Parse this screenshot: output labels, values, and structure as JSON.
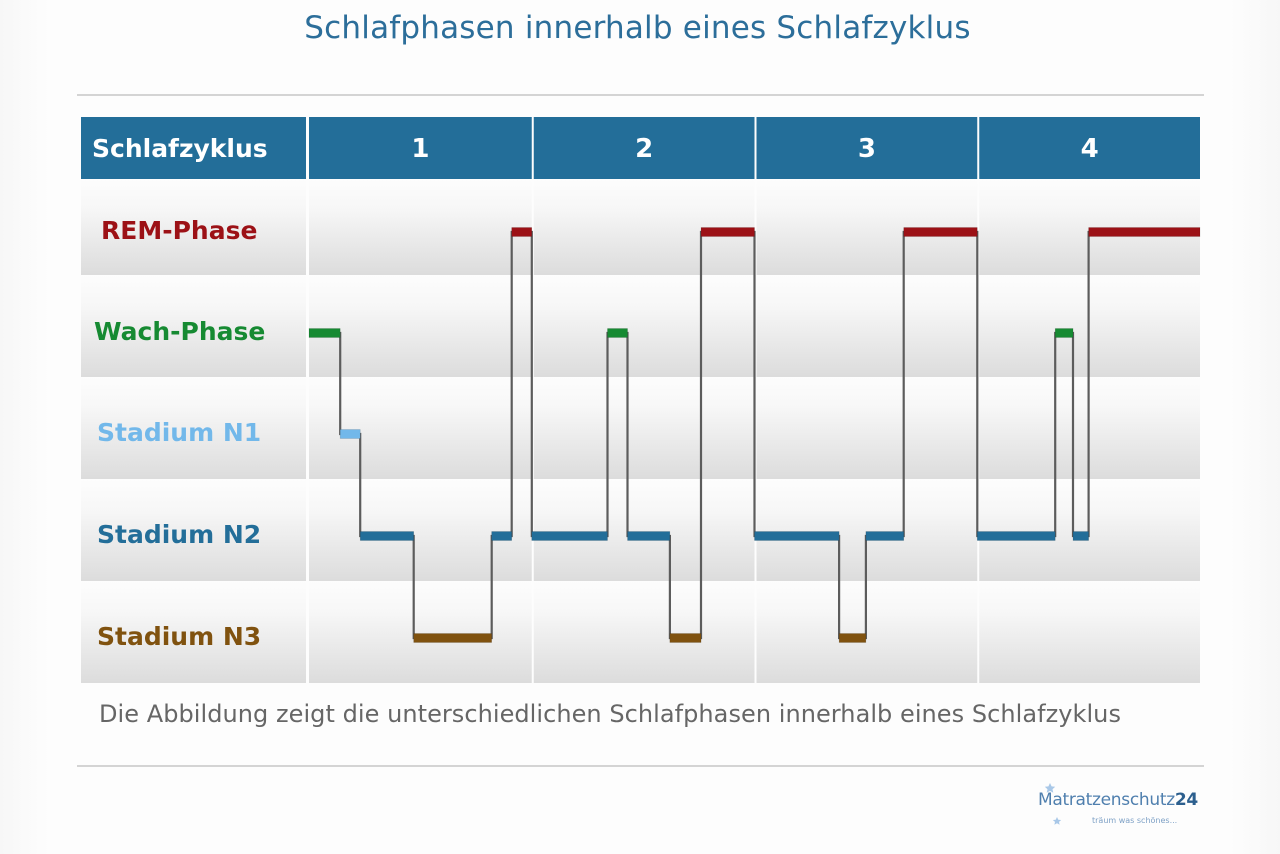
{
  "title": "Schlafphasen innerhalb eines Schlafzyklus",
  "caption": "Die Abbildung zeigt die unterschiedlichen Schlafphasen innerhalb eines Schlafzyklus",
  "logo": {
    "name": "Matratzenschutz",
    "number": "24",
    "tagline": "träum was schönes..."
  },
  "colors": {
    "header": "#236e99",
    "trace": "#5c5c5c",
    "rem": "#9c1116",
    "wach": "#168a32",
    "n1": "#72b8ea",
    "n2": "#236e99",
    "n3": "#80520f"
  },
  "chart_data": {
    "type": "line",
    "header_label": "Schlafzyklus",
    "cycles": [
      "1",
      "2",
      "3",
      "4"
    ],
    "stages": [
      {
        "key": "rem",
        "label": "REM-Phase"
      },
      {
        "key": "wach",
        "label": "Wach-Phase"
      },
      {
        "key": "n1",
        "label": "Stadium N1"
      },
      {
        "key": "n2",
        "label": "Stadium N2"
      },
      {
        "key": "n3",
        "label": "Stadium N3"
      }
    ],
    "x_range": [
      0,
      4
    ],
    "hypnogram": [
      {
        "stage": "wach",
        "start": 0.0,
        "end": 0.14
      },
      {
        "stage": "n1",
        "start": 0.14,
        "end": 0.23
      },
      {
        "stage": "n2",
        "start": 0.23,
        "end": 0.47
      },
      {
        "stage": "n3",
        "start": 0.47,
        "end": 0.82
      },
      {
        "stage": "n2",
        "start": 0.82,
        "end": 0.91
      },
      {
        "stage": "rem",
        "start": 0.91,
        "end": 1.0
      },
      {
        "stage": "n2",
        "start": 1.0,
        "end": 1.34
      },
      {
        "stage": "wach",
        "start": 1.34,
        "end": 1.43
      },
      {
        "stage": "n2",
        "start": 1.43,
        "end": 1.62
      },
      {
        "stage": "n3",
        "start": 1.62,
        "end": 1.76
      },
      {
        "stage": "rem",
        "start": 1.76,
        "end": 2.0
      },
      {
        "stage": "n2",
        "start": 2.0,
        "end": 2.38
      },
      {
        "stage": "n3",
        "start": 2.38,
        "end": 2.5
      },
      {
        "stage": "n2",
        "start": 2.5,
        "end": 2.67
      },
      {
        "stage": "rem",
        "start": 2.67,
        "end": 3.0
      },
      {
        "stage": "n2",
        "start": 3.0,
        "end": 3.35
      },
      {
        "stage": "wach",
        "start": 3.35,
        "end": 3.43
      },
      {
        "stage": "n2",
        "start": 3.43,
        "end": 3.5
      },
      {
        "stage": "rem",
        "start": 3.5,
        "end": 4.0
      }
    ]
  }
}
